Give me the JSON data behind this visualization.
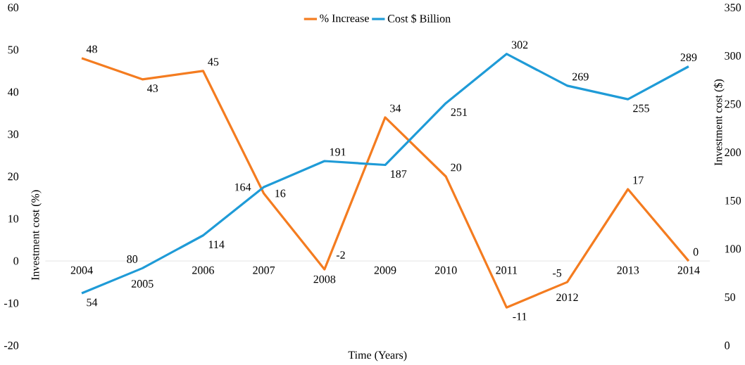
{
  "chart_data": {
    "type": "line",
    "xlabel": "Time (Years)",
    "ylabel": "Investment cost  (%)",
    "y2label": "Investment cost ($)",
    "categories": [
      "2004",
      "2005",
      "2006",
      "2007",
      "2008",
      "2009",
      "2010",
      "2011",
      "2012",
      "2013",
      "2014"
    ],
    "series": [
      {
        "name": "%  Increase",
        "color": "#f47c20",
        "values": [
          48,
          43,
          45,
          16,
          -2,
          34,
          20,
          -11,
          -5,
          17,
          0
        ]
      },
      {
        "name": "Cost $ Billion",
        "color": "#1f9bd7",
        "axis": "y2",
        "values": [
          54,
          80,
          114,
          164,
          191,
          187,
          251,
          302,
          269,
          255,
          289
        ]
      }
    ],
    "ylim": [
      -20,
      60
    ],
    "yticks": [
      -20,
      -10,
      0,
      10,
      20,
      30,
      40,
      50,
      60
    ],
    "y2lim": [
      0,
      350
    ],
    "y2ticks": [
      0,
      50,
      100,
      150,
      200,
      250,
      300,
      350
    ],
    "data_labels": true,
    "legend": "top",
    "grid": false,
    "marker": "none",
    "line_style": "solid"
  }
}
